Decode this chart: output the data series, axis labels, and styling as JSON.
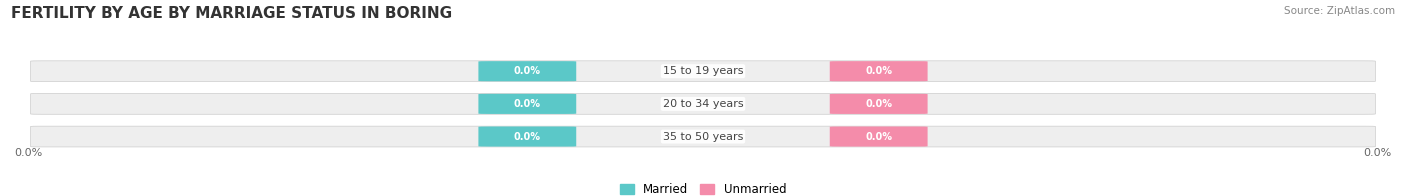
{
  "title": "FERTILITY BY AGE BY MARRIAGE STATUS IN BORING",
  "source": "Source: ZipAtlas.com",
  "categories": [
    "15 to 19 years",
    "20 to 34 years",
    "35 to 50 years"
  ],
  "married_values": [
    0.0,
    0.0,
    0.0
  ],
  "unmarried_values": [
    0.0,
    0.0,
    0.0
  ],
  "married_color": "#5bc8c8",
  "unmarried_color": "#f48caa",
  "bar_bg_color": "#eeeeee",
  "bar_border_color": "#cccccc",
  "title_fontsize": 11,
  "source_fontsize": 7.5,
  "label_fontsize": 7,
  "cat_fontsize": 8,
  "axis_label_left": "0.0%",
  "axis_label_right": "0.0%",
  "background_color": "#ffffff",
  "title_color": "#333333",
  "source_color": "#888888",
  "axis_color": "#666666"
}
